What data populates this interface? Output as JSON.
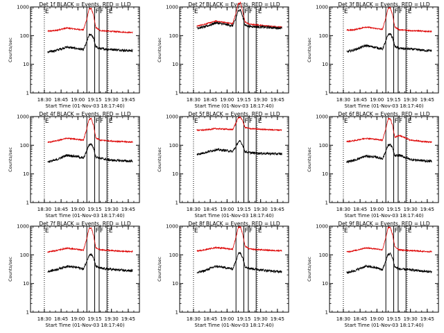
{
  "figure": {
    "time_axis_label": "Start Time (01-Nov-03 18:17:40)",
    "y_axis_label": "Counts/sec",
    "marker_labels": [
      "E",
      "F",
      "F",
      "E"
    ]
  },
  "colors": {
    "events": "#000000",
    "lld": "#dd0000",
    "guide": "#000000"
  },
  "chart_data": [
    {
      "type": "line",
      "title": "Det 1f BLACK = Events, RED = LLD",
      "xlabel": "Start Time (01-Nov-03 18:17:40)",
      "ylabel": "Counts/sec",
      "y_scale": "log",
      "ylim": [
        1,
        1000
      ],
      "yticks": [
        "1",
        "10",
        "100",
        "1000"
      ],
      "xticks": [
        "18:30",
        "18:45",
        "19:00",
        "19:15",
        "19:30",
        "19:45"
      ],
      "markers": {
        "dotted": [
          "18:30",
          "19:27"
        ],
        "solid": [
          "19:08",
          "19:15",
          "19:19",
          "19:26"
        ],
        "labels": [
          "E",
          "F",
          "F",
          "E"
        ]
      },
      "series": [
        {
          "color": "red",
          "x": [
            "18:30",
            "18:40",
            "18:50",
            "19:00",
            "19:05",
            "19:08",
            "19:10",
            "19:12",
            "19:14",
            "19:16",
            "19:20",
            "19:30",
            "19:45"
          ],
          "y": [
            140,
            150,
            185,
            165,
            160,
            380,
            850,
            880,
            500,
            190,
            150,
            140,
            130
          ]
        },
        {
          "color": "black",
          "x": [
            "18:30",
            "18:40",
            "18:50",
            "19:00",
            "19:05",
            "19:08",
            "19:10",
            "19:12",
            "19:14",
            "19:16",
            "19:20",
            "19:30",
            "19:45"
          ],
          "y": [
            25,
            30,
            40,
            35,
            32,
            60,
            105,
            110,
            80,
            40,
            35,
            33,
            30
          ]
        }
      ]
    },
    {
      "type": "line",
      "title": "Det 2f BLACK = Events, RED = LLD",
      "xlabel": "Start Time (01-Nov-03 18:17:40)",
      "ylabel": "Counts/sec",
      "y_scale": "log",
      "ylim": [
        1,
        1000
      ],
      "yticks": [
        "1",
        "10",
        "100",
        "1000"
      ],
      "xticks": [
        "18:30",
        "18:45",
        "19:00",
        "19:15",
        "19:30",
        "19:45"
      ],
      "markers": {
        "dotted": [
          "18:30",
          "19:27"
        ],
        "solid": [
          "19:08",
          "19:15",
          "19:19",
          "19:26"
        ],
        "labels": [
          "E",
          "F",
          "F",
          "E"
        ]
      },
      "series": [
        {
          "color": "red",
          "x": [
            "18:30",
            "18:40",
            "18:50",
            "19:00",
            "19:05",
            "19:08",
            "19:10",
            "19:12",
            "19:14",
            "19:16",
            "19:20",
            "19:30",
            "19:45"
          ],
          "y": [
            200,
            250,
            320,
            280,
            260,
            600,
            1300,
            1400,
            700,
            300,
            250,
            230,
            200
          ]
        },
        {
          "color": "black",
          "x": [
            "18:30",
            "18:40",
            "18:50",
            "19:00",
            "19:05",
            "19:08",
            "19:10",
            "19:12",
            "19:14",
            "19:16",
            "19:20",
            "19:30",
            "19:45"
          ],
          "y": [
            180,
            200,
            280,
            240,
            220,
            400,
            750,
            800,
            450,
            230,
            210,
            200,
            185
          ]
        }
      ]
    },
    {
      "type": "line",
      "title": "Det 3f BLACK = Events, RED = LLD",
      "xlabel": "Start Time (01-Nov-03 18:17:40)",
      "ylabel": "Counts/sec",
      "y_scale": "log",
      "ylim": [
        1,
        1000
      ],
      "yticks": [
        "1",
        "10",
        "100",
        "1000"
      ],
      "xticks": [
        "18:30",
        "18:45",
        "19:00",
        "19:15",
        "19:30",
        "19:45"
      ],
      "markers": {
        "dotted": [
          "18:30",
          "19:27"
        ],
        "solid": [
          "19:08",
          "19:15",
          "19:19",
          "19:26"
        ],
        "labels": [
          "E",
          "F",
          "F",
          "E"
        ]
      },
      "series": [
        {
          "color": "red",
          "x": [
            "18:30",
            "18:40",
            "18:50",
            "19:00",
            "19:05",
            "19:08",
            "19:10",
            "19:12",
            "19:14",
            "19:16",
            "19:20",
            "19:30",
            "19:45"
          ],
          "y": [
            150,
            160,
            200,
            175,
            165,
            420,
            900,
            950,
            520,
            200,
            160,
            150,
            140
          ]
        },
        {
          "color": "black",
          "x": [
            "18:30",
            "18:40",
            "18:50",
            "19:00",
            "19:05",
            "19:08",
            "19:10",
            "19:12",
            "19:14",
            "19:16",
            "19:20",
            "19:30",
            "19:45"
          ],
          "y": [
            25,
            32,
            45,
            38,
            34,
            65,
            110,
            115,
            85,
            42,
            36,
            34,
            30
          ]
        }
      ]
    },
    {
      "type": "line",
      "title": "Det 4f BLACK = Events, RED = LLD",
      "xlabel": "Start Time (01-Nov-03 18:17:40)",
      "ylabel": "Counts/sec",
      "y_scale": "log",
      "ylim": [
        1,
        1000
      ],
      "yticks": [
        "1",
        "10",
        "100",
        "1000"
      ],
      "xticks": [
        "18:30",
        "18:45",
        "19:00",
        "19:15",
        "19:30",
        "19:45"
      ],
      "markers": {
        "dotted": [
          "18:30",
          "19:27"
        ],
        "solid": [
          "19:08",
          "19:15",
          "19:19",
          "19:26"
        ],
        "labels": [
          "E",
          "F",
          "F",
          "E"
        ]
      },
      "series": [
        {
          "color": "red",
          "x": [
            "18:30",
            "18:40",
            "18:50",
            "19:00",
            "19:05",
            "19:08",
            "19:10",
            "19:12",
            "19:14",
            "19:16",
            "19:20",
            "19:30",
            "19:45"
          ],
          "y": [
            120,
            140,
            175,
            160,
            150,
            380,
            800,
            850,
            480,
            180,
            150,
            140,
            130
          ]
        },
        {
          "color": "black",
          "x": [
            "18:30",
            "18:40",
            "18:50",
            "19:00",
            "19:05",
            "19:08",
            "19:10",
            "19:12",
            "19:14",
            "19:16",
            "19:20",
            "19:30",
            "19:45"
          ],
          "y": [
            25,
            30,
            45,
            40,
            35,
            65,
            105,
            110,
            80,
            40,
            35,
            30,
            28
          ]
        }
      ]
    },
    {
      "type": "line",
      "title": "Det 5f BLACK = Events, RED = LLD",
      "xlabel": "Start Time (01-Nov-03 18:17:40)",
      "ylabel": "Counts/sec",
      "y_scale": "log",
      "ylim": [
        1,
        1000
      ],
      "yticks": [
        "1",
        "10",
        "100",
        "1000"
      ],
      "xticks": [
        "18:30",
        "18:45",
        "19:00",
        "19:15",
        "19:30",
        "19:45"
      ],
      "markers": {
        "dotted": [
          "18:30",
          "19:27"
        ],
        "solid": [
          "19:08",
          "19:15",
          "19:19",
          "19:26"
        ],
        "labels": [
          "E",
          "F",
          "F",
          "E"
        ]
      },
      "series": [
        {
          "color": "red",
          "x": [
            "18:30",
            "18:40",
            "18:50",
            "19:00",
            "19:05",
            "19:08",
            "19:10",
            "19:12",
            "19:14",
            "19:16",
            "19:20",
            "19:30",
            "19:45"
          ],
          "y": [
            330,
            340,
            380,
            360,
            350,
            600,
            900,
            950,
            700,
            420,
            380,
            360,
            340
          ]
        },
        {
          "color": "black",
          "x": [
            "18:30",
            "18:40",
            "18:50",
            "19:00",
            "19:05",
            "19:08",
            "19:10",
            "19:12",
            "19:14",
            "19:16",
            "19:20",
            "19:30",
            "19:45"
          ],
          "y": [
            45,
            55,
            70,
            65,
            60,
            90,
            130,
            135,
            100,
            60,
            55,
            52,
            50
          ]
        }
      ]
    },
    {
      "type": "line",
      "title": "Det 6f BLACK = Events, RED = LLD",
      "xlabel": "Start Time (01-Nov-03 18:17:40)",
      "ylabel": "Counts/sec",
      "y_scale": "log",
      "ylim": [
        1,
        1000
      ],
      "yticks": [
        "1",
        "10",
        "100",
        "1000"
      ],
      "xticks": [
        "18:30",
        "18:45",
        "19:00",
        "19:15",
        "19:30",
        "19:45"
      ],
      "markers": {
        "dotted": [
          "18:30",
          "19:27"
        ],
        "solid": [
          "19:08",
          "19:15",
          "19:19",
          "19:26"
        ],
        "labels": [
          "E",
          "F",
          "F",
          "E"
        ]
      },
      "series": [
        {
          "color": "red",
          "x": [
            "18:30",
            "18:40",
            "18:50",
            "19:00",
            "19:05",
            "19:08",
            "19:10",
            "19:12",
            "19:14",
            "19:16",
            "19:20",
            "19:30",
            "19:45"
          ],
          "y": [
            130,
            145,
            175,
            160,
            150,
            380,
            820,
            860,
            480,
            190,
            220,
            150,
            130
          ]
        },
        {
          "color": "black",
          "x": [
            "18:30",
            "18:40",
            "18:50",
            "19:00",
            "19:05",
            "19:08",
            "19:10",
            "19:12",
            "19:14",
            "19:16",
            "19:20",
            "19:30",
            "19:45"
          ],
          "y": [
            25,
            30,
            42,
            38,
            34,
            62,
            100,
            105,
            78,
            42,
            45,
            32,
            28
          ]
        }
      ]
    },
    {
      "type": "line",
      "title": "Det 7f BLACK = Events, RED = LLD",
      "xlabel": "Start Time (01-Nov-03 18:17:40)",
      "ylabel": "Counts/sec",
      "y_scale": "log",
      "ylim": [
        1,
        1000
      ],
      "yticks": [
        "1",
        "10",
        "100",
        "1000"
      ],
      "xticks": [
        "18:30",
        "18:45",
        "19:00",
        "19:15",
        "19:30",
        "19:45"
      ],
      "markers": {
        "dotted": [
          "18:30",
          "19:27"
        ],
        "solid": [
          "19:08",
          "19:15",
          "19:19",
          "19:26"
        ],
        "labels": [
          "E",
          "F",
          "F",
          "E"
        ]
      },
      "series": [
        {
          "color": "red",
          "x": [
            "18:30",
            "18:40",
            "18:50",
            "19:00",
            "19:05",
            "19:08",
            "19:10",
            "19:12",
            "19:14",
            "19:16",
            "19:20",
            "19:30",
            "19:45"
          ],
          "y": [
            120,
            140,
            170,
            155,
            145,
            380,
            820,
            860,
            470,
            180,
            150,
            140,
            130
          ]
        },
        {
          "color": "black",
          "x": [
            "18:30",
            "18:40",
            "18:50",
            "19:00",
            "19:05",
            "19:08",
            "19:10",
            "19:12",
            "19:14",
            "19:16",
            "19:20",
            "19:30",
            "19:45"
          ],
          "y": [
            25,
            30,
            40,
            36,
            32,
            60,
            100,
            105,
            78,
            40,
            34,
            31,
            28
          ]
        }
      ]
    },
    {
      "type": "line",
      "title": "Det 8f BLACK = Events, RED = LLD",
      "xlabel": "Start Time (01-Nov-03 18:17:40)",
      "ylabel": "Counts/sec",
      "y_scale": "log",
      "ylim": [
        1,
        1000
      ],
      "yticks": [
        "1",
        "10",
        "100",
        "1000"
      ],
      "xticks": [
        "18:30",
        "18:45",
        "19:00",
        "19:15",
        "19:30",
        "19:45"
      ],
      "markers": {
        "dotted": [
          "18:30",
          "19:27"
        ],
        "solid": [
          "19:08",
          "19:15",
          "19:19",
          "19:26"
        ],
        "labels": [
          "E",
          "F",
          "F",
          "E"
        ]
      },
      "series": [
        {
          "color": "red",
          "x": [
            "18:30",
            "18:40",
            "18:50",
            "19:00",
            "19:05",
            "19:08",
            "19:10",
            "19:12",
            "19:14",
            "19:16",
            "19:20",
            "19:30",
            "19:45"
          ],
          "y": [
            130,
            150,
            180,
            165,
            155,
            420,
            900,
            950,
            520,
            200,
            160,
            150,
            140
          ]
        },
        {
          "color": "black",
          "x": [
            "18:30",
            "18:40",
            "18:50",
            "19:00",
            "19:05",
            "19:08",
            "19:10",
            "19:12",
            "19:14",
            "19:16",
            "19:20",
            "19:30",
            "19:45"
          ],
          "y": [
            22,
            28,
            40,
            35,
            32,
            62,
            110,
            115,
            80,
            40,
            34,
            30,
            26
          ]
        }
      ]
    },
    {
      "type": "line",
      "title": "Det 9f BLACK = Events, RED = LLD",
      "xlabel": "Start Time (01-Nov-03 18:17:40)",
      "ylabel": "Counts/sec",
      "y_scale": "log",
      "ylim": [
        1,
        1000
      ],
      "yticks": [
        "1",
        "10",
        "100",
        "1000"
      ],
      "xticks": [
        "18:30",
        "18:45",
        "19:00",
        "19:15",
        "19:30",
        "19:45"
      ],
      "markers": {
        "dotted": [
          "18:30",
          "19:27"
        ],
        "solid": [
          "19:08",
          "19:15",
          "19:19",
          "19:26"
        ],
        "labels": [
          "E",
          "F",
          "F",
          "E"
        ]
      },
      "series": [
        {
          "color": "red",
          "x": [
            "18:30",
            "18:40",
            "18:50",
            "19:00",
            "19:05",
            "19:08",
            "19:10",
            "19:12",
            "19:14",
            "19:16",
            "19:20",
            "19:30",
            "19:45"
          ],
          "y": [
            120,
            140,
            175,
            160,
            150,
            400,
            880,
            920,
            500,
            190,
            150,
            140,
            130
          ]
        },
        {
          "color": "black",
          "x": [
            "18:30",
            "18:40",
            "18:50",
            "19:00",
            "19:05",
            "19:08",
            "19:10",
            "19:12",
            "19:14",
            "19:16",
            "19:20",
            "19:30",
            "19:45"
          ],
          "y": [
            22,
            28,
            40,
            35,
            30,
            62,
            105,
            110,
            78,
            38,
            32,
            30,
            26
          ]
        }
      ]
    }
  ]
}
